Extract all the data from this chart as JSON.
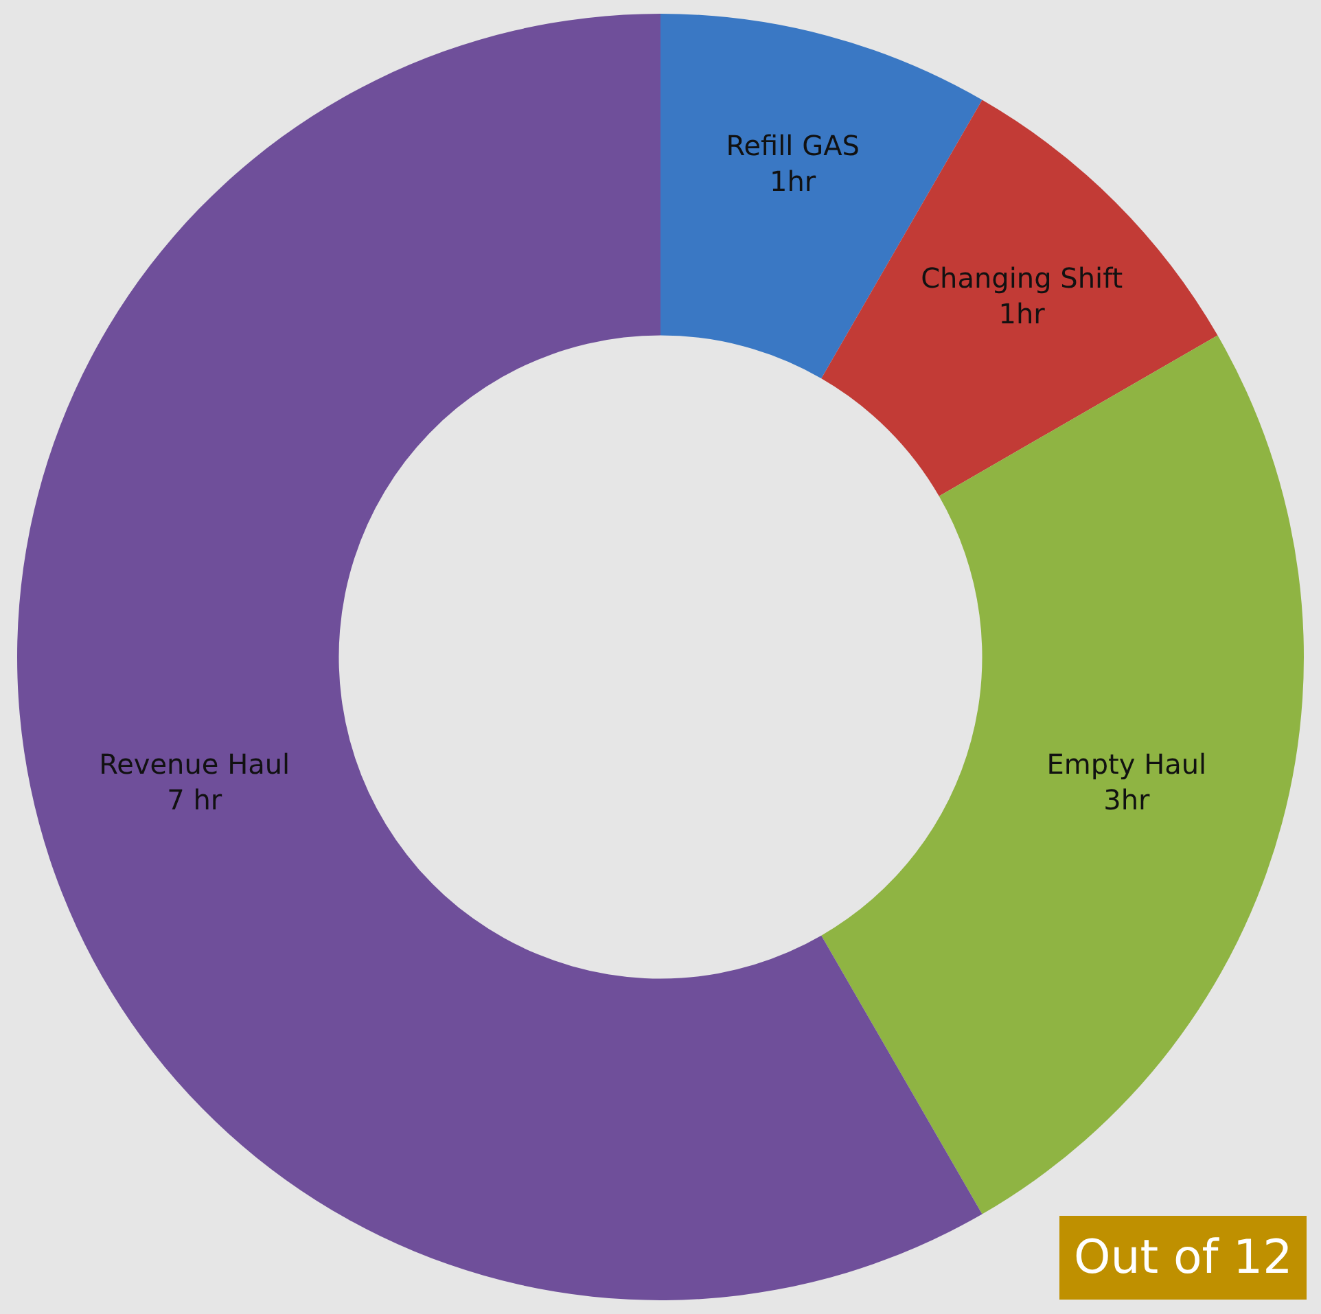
{
  "chart_data": {
    "type": "donut",
    "categories": [
      "Refill GAS",
      "Changing Shift",
      "Empty Haul",
      "Revenue Haul"
    ],
    "values": [
      1,
      1,
      3,
      7
    ],
    "value_labels": [
      "1hr",
      "1hr",
      "3hr",
      "7 hr"
    ],
    "colors": [
      "#3a78c4",
      "#c23b36",
      "#8fb443",
      "#6f4f9a"
    ],
    "annotations": [
      "Out of 12"
    ],
    "legend": false
  }
}
